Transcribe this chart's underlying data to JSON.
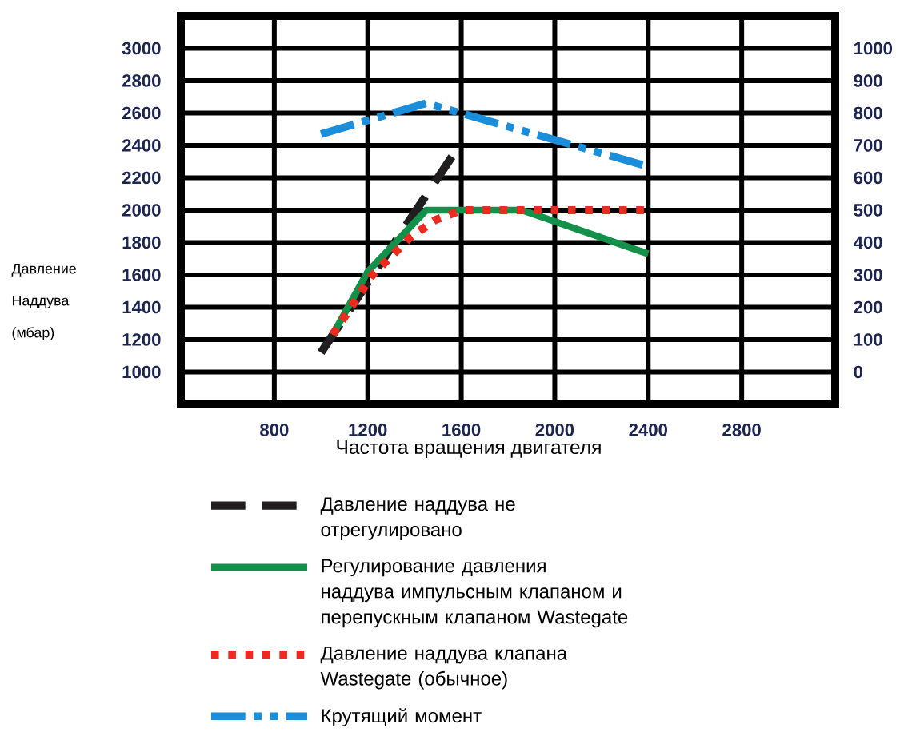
{
  "chart_data": {
    "type": "line",
    "xlabel": "Частота вращения двигателя",
    "ylabel": "Давление Наддува (мбар)",
    "xlim": [
      400,
      3200
    ],
    "xticks": [
      800,
      1200,
      1600,
      2000,
      2400,
      2800
    ],
    "ylim": [
      800,
      3200
    ],
    "yticks": [
      1000,
      1200,
      1400,
      1600,
      1800,
      2000,
      2200,
      2400,
      2600,
      2800,
      3000
    ],
    "y2lim": [
      -100,
      1100
    ],
    "y2ticks": [
      0,
      100,
      200,
      300,
      400,
      500,
      600,
      700,
      800,
      900,
      1000
    ],
    "grid": true,
    "legend": "bottom",
    "series": [
      {
        "name": "Давление наддува не отрегулировано",
        "color": "#221e1f",
        "line_style": "dashed",
        "x": [
          1000,
          1560
        ],
        "values": [
          1120,
          2330
        ]
      },
      {
        "name": "Регулирование давления наддува импульсным клапаном и перепускным клапаном Wastegate",
        "color": "#13914a",
        "line_style": "solid",
        "x": [
          1050,
          1200,
          1450,
          1860,
          2400
        ],
        "values": [
          1230,
          1620,
          2000,
          2000,
          1730
        ]
      },
      {
        "name": "Давление наддува клапана Wastegate (обычное)",
        "color": "#ec2a1e",
        "line_style": "dotted",
        "x": [
          1050,
          1220,
          1380,
          1490,
          1600,
          2400
        ],
        "values": [
          1230,
          1600,
          1830,
          1940,
          2000,
          2000
        ]
      },
      {
        "name": "Крутящий момент",
        "color": "#1a8ddb",
        "line_style": "dashdotdotted",
        "axis": "y2",
        "x": [
          1000,
          1450,
          2400
        ],
        "values": [
          735,
          830,
          635
        ]
      }
    ]
  }
}
